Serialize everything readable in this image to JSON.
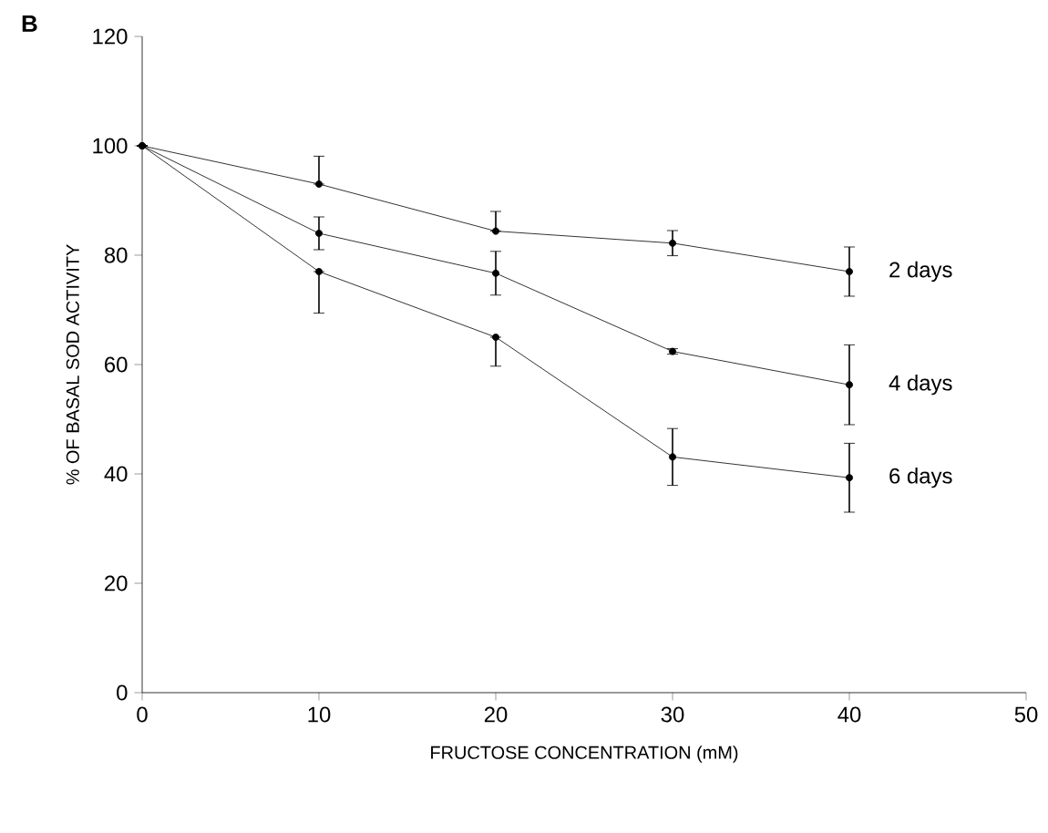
{
  "chart_data": {
    "type": "line",
    "xlabel": "FRUCTOSE CONCENTRATION (mM)",
    "ylabel": "% OF BASAL SOD ACTIVITY",
    "annotations": [
      "B"
    ],
    "x": [
      0,
      10,
      20,
      30,
      40
    ],
    "series": [
      {
        "name": "2 days",
        "color": "#000000",
        "values": [
          100,
          93,
          84.4,
          82.2,
          77
        ],
        "errors": [
          null,
          [
            93,
            98.1
          ],
          [
            84.4,
            88
          ],
          2.3,
          4.5
        ]
      },
      {
        "name": "4 days",
        "color": "#000000",
        "values": [
          100,
          84,
          76.7,
          62.4,
          56.3
        ],
        "errors": [
          null,
          3,
          4,
          0.5,
          7.3
        ]
      },
      {
        "name": "6 days",
        "color": "#000000",
        "values": [
          100,
          77,
          65,
          43.1,
          39.3
        ],
        "errors": [
          null,
          [
            69.4,
            77
          ],
          [
            59.7,
            65
          ],
          5.2,
          6.3
        ]
      }
    ],
    "xlim": [
      0,
      50
    ],
    "xticks": [
      0,
      10,
      20,
      30,
      40,
      50
    ],
    "ylim": [
      0,
      120
    ],
    "yticks": [
      0,
      20,
      40,
      60,
      80,
      100,
      120
    ],
    "grid": false,
    "legend": false,
    "marker": "circle",
    "line_style": "solid"
  }
}
